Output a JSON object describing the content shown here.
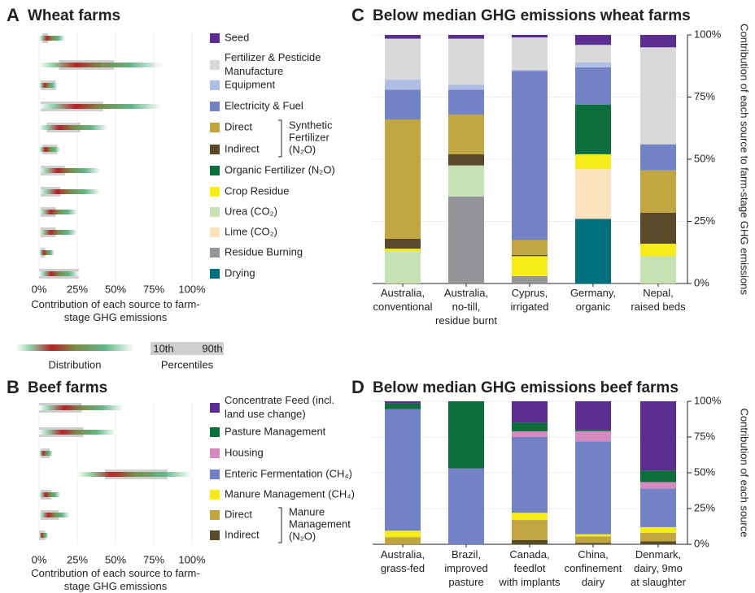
{
  "chart_data": [
    {
      "type": "strip",
      "label": "A",
      "title": "Wheat farms",
      "rows": [
        {
          "name": "Seed",
          "color": "#5b2d90",
          "p10": 2,
          "p90": 6,
          "range": [
            0,
            17
          ]
        },
        {
          "name": [
            "Fertilizer & Pesticide",
            "Manufacture"
          ],
          "color": "#d9d9d9",
          "p10": 13,
          "p90": 49,
          "range": [
            0,
            80
          ]
        },
        {
          "name": "Equipment",
          "color": "#aebfe3",
          "p10": 1,
          "p90": 11,
          "range": [
            0,
            12
          ]
        },
        {
          "name": "Electricity & Fuel",
          "color": "#7282c4",
          "p10": 1,
          "p90": 42,
          "range": [
            0,
            80
          ]
        },
        {
          "name": "Direct",
          "color": "#c0a540",
          "p10": 5,
          "p90": 27,
          "range": [
            0,
            45
          ]
        },
        {
          "name": "Indirect",
          "color": "#5a4a2a",
          "p10": 2,
          "p90": 12,
          "range": [
            0,
            14
          ]
        },
        {
          "name": "Organic Fertilizer (N₂O)",
          "color": "#0e6e3b",
          "p10": 1,
          "p90": 17,
          "range": [
            0,
            40
          ]
        },
        {
          "name": "Crop Residue",
          "color": "#f5ec1a",
          "p10": 1,
          "p90": 14,
          "range": [
            0,
            40
          ]
        },
        {
          "name": "Urea (CO₂)",
          "color": "#c6e2b2",
          "p10": 1,
          "p90": 11,
          "range": [
            0,
            25
          ]
        },
        {
          "name": "Lime (CO₂)",
          "color": "#fbe3bd",
          "p10": 1,
          "p90": 11,
          "range": [
            0,
            25
          ]
        },
        {
          "name": "Residue Burning",
          "color": "#939598",
          "p10": 1,
          "p90": 4,
          "range": [
            0,
            10
          ]
        },
        {
          "name": "Drying",
          "color": "#006f7e",
          "p10": 0,
          "p90": 26,
          "range": [
            0,
            26
          ]
        }
      ],
      "group_label": [
        "Synthetic",
        "Fertilizer",
        "(N₂O)"
      ],
      "xlim": [
        0,
        100
      ],
      "xticks": [
        {
          "value": 0,
          "label": "0%"
        },
        {
          "value": 25,
          "label": "25%"
        },
        {
          "value": 50,
          "label": "50%"
        },
        {
          "value": 75,
          "label": "75%"
        },
        {
          "value": 100,
          "label": "100%"
        }
      ],
      "xlabel": [
        "Contribution of each source to farm-",
        "stage GHG emissions"
      ],
      "key": {
        "distribution": "Distribution",
        "low": "10th",
        "high": "90th",
        "percentiles": "Percentiles"
      }
    },
    {
      "type": "strip",
      "label": "B",
      "title": "Beef farms",
      "rows": [
        {
          "name": [
            "Concentrate Feed (incl.",
            "land use change)"
          ],
          "color": "#5b2d90",
          "p10": 0,
          "p90": 28,
          "range": [
            0,
            55
          ]
        },
        {
          "name": "Pasture Management",
          "color": "#0e6e3b",
          "p10": 0,
          "p90": 29,
          "range": [
            0,
            50
          ]
        },
        {
          "name": "Housing",
          "color": "#d58ac0",
          "p10": 1,
          "p90": 7,
          "range": [
            0,
            9
          ]
        },
        {
          "name": "Enteric Fermentation (CH₄)",
          "color": "#7282c4",
          "p10": 43,
          "p90": 84,
          "range": [
            25,
            100
          ]
        },
        {
          "name": "Manure Management (CH₄)",
          "color": "#f5ec1a",
          "p10": 1,
          "p90": 8,
          "range": [
            0,
            14
          ]
        },
        {
          "name": "Direct",
          "color": "#c0a540",
          "p10": 1,
          "p90": 13,
          "range": [
            0,
            20
          ]
        },
        {
          "name": "Indirect",
          "color": "#5a4a2a",
          "p10": 0,
          "p90": 4,
          "range": [
            0,
            6
          ]
        }
      ],
      "group_label": [
        "Manure",
        "Management",
        "(N₂O)"
      ],
      "xlim": [
        0,
        100
      ],
      "xticks": [
        {
          "value": 0,
          "label": "0%"
        },
        {
          "value": 25,
          "label": "25%"
        },
        {
          "value": 50,
          "label": "50%"
        },
        {
          "value": 75,
          "label": "75%"
        },
        {
          "value": 100,
          "label": "100%"
        }
      ],
      "xlabel": [
        "Contribution of each source to farm-",
        "stage GHG emissions"
      ]
    },
    {
      "type": "stacked-bar",
      "label": "C",
      "title": "Below median GHG emissions wheat farms",
      "categories": [
        [
          "Australia,",
          "conventional"
        ],
        [
          "Australia,",
          "no-till,",
          "residue burnt"
        ],
        [
          "Cyprus,",
          "irrigated"
        ],
        [
          "Germany,",
          "organic"
        ],
        [
          "Nepal,",
          "raised beds"
        ]
      ],
      "series": [
        {
          "color": "#006f7e",
          "values": [
            0,
            0,
            0,
            26,
            0
          ]
        },
        {
          "color": "#939598",
          "values": [
            0,
            35,
            3,
            0,
            0
          ]
        },
        {
          "color": "#fbe3bd",
          "values": [
            0,
            0,
            0,
            20,
            0
          ]
        },
        {
          "color": "#c6e2b2",
          "values": [
            13,
            12.5,
            0,
            0,
            11
          ]
        },
        {
          "color": "#f5ec1a",
          "values": [
            1,
            0,
            8,
            6,
            5
          ]
        },
        {
          "color": "#0e6e3b",
          "values": [
            0,
            0,
            0,
            20,
            0
          ]
        },
        {
          "color": "#5a4a2a",
          "values": [
            4,
            4.5,
            0.5,
            0,
            12.5
          ]
        },
        {
          "color": "#c0a540",
          "values": [
            48,
            16,
            6,
            0,
            17
          ]
        },
        {
          "color": "#7282c4",
          "values": [
            12,
            10,
            68,
            15,
            10.5
          ]
        },
        {
          "color": "#aebfe3",
          "values": [
            4,
            2,
            0.5,
            2,
            0
          ]
        },
        {
          "color": "#d9d9d9",
          "values": [
            16.5,
            18.5,
            13,
            7,
            39
          ]
        },
        {
          "color": "#5b2d90",
          "values": [
            1.5,
            1.5,
            1,
            4,
            5
          ]
        }
      ],
      "ylim": [
        0,
        100
      ],
      "yticks": [
        {
          "value": 0,
          "label": "0%"
        },
        {
          "value": 25,
          "label": "25%"
        },
        {
          "value": 50,
          "label": "50%"
        },
        {
          "value": 75,
          "label": "75%"
        },
        {
          "value": 100,
          "label": "100%"
        }
      ],
      "ylabel": "Contribution of each source to farm-stage GHG emissions",
      "grid": true
    },
    {
      "type": "stacked-bar",
      "label": "D",
      "title": "Below median GHG emissions beef farms",
      "categories": [
        [
          "Australia,",
          "grass-fed"
        ],
        [
          "Brazil,",
          "improved",
          "pasture"
        ],
        [
          "Canada,",
          "feedlot",
          "with implants"
        ],
        [
          "China,",
          "confinement",
          "dairy"
        ],
        [
          "Denmark,",
          "dairy, 9mo",
          "at slaughter"
        ]
      ],
      "series": [
        {
          "color": "#5a4a2a",
          "values": [
            0,
            0,
            3,
            1,
            2
          ]
        },
        {
          "color": "#c0a540",
          "values": [
            5,
            0,
            14,
            4.5,
            6
          ]
        },
        {
          "color": "#f5ec1a",
          "values": [
            4.5,
            0,
            5,
            1.5,
            4
          ]
        },
        {
          "color": "#7282c4",
          "values": [
            85,
            53,
            53,
            65,
            27
          ]
        },
        {
          "color": "#d58ac0",
          "values": [
            0,
            0,
            4,
            7,
            4.5
          ]
        },
        {
          "color": "#0e6e3b",
          "values": [
            4,
            47,
            6,
            1,
            8
          ]
        },
        {
          "color": "#5b2d90",
          "values": [
            1.5,
            0,
            15,
            20,
            48.5
          ]
        }
      ],
      "ylim": [
        0,
        100
      ],
      "yticks": [
        {
          "value": 0,
          "label": "0%"
        },
        {
          "value": 25,
          "label": "25%"
        },
        {
          "value": 50,
          "label": "50%"
        },
        {
          "value": 75,
          "label": "75%"
        },
        {
          "value": 100,
          "label": "100%"
        }
      ],
      "ylabel": "Contribution of each source",
      "grid": true
    }
  ]
}
